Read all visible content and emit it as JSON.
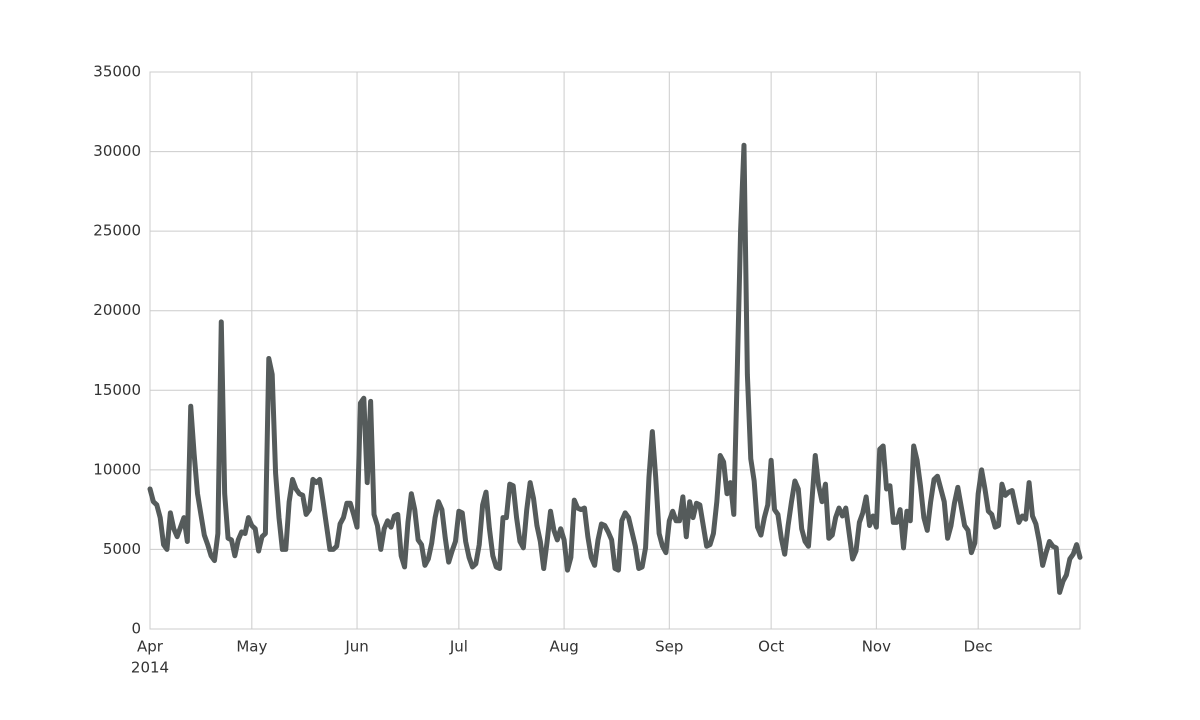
{
  "chart_data": {
    "type": "line",
    "xticks": [
      {
        "value": 0,
        "label": "Apr",
        "sublabel": "2014"
      },
      {
        "value": 30,
        "label": "May"
      },
      {
        "value": 61,
        "label": "Jun"
      },
      {
        "value": 91,
        "label": "Jul"
      },
      {
        "value": 122,
        "label": "Aug"
      },
      {
        "value": 153,
        "label": "Sep"
      },
      {
        "value": 183,
        "label": "Oct"
      },
      {
        "value": 214,
        "label": "Nov"
      },
      {
        "value": 244,
        "label": "Dec"
      }
    ],
    "xlim": [
      0,
      274
    ],
    "ylim": [
      0,
      35000
    ],
    "yticks": [
      0,
      5000,
      10000,
      15000,
      20000,
      25000,
      30000,
      35000
    ],
    "grid": true,
    "color": "#555b5b",
    "values": [
      8800,
      8000,
      7800,
      7000,
      5300,
      5000,
      7300,
      6300,
      5800,
      6400,
      7000,
      5500,
      14000,
      11000,
      8500,
      7200,
      5900,
      5300,
      4600,
      4300,
      6000,
      19300,
      8500,
      5700,
      5600,
      4600,
      5600,
      6100,
      6000,
      7000,
      6500,
      6300,
      4900,
      5800,
      6000,
      17000,
      16000,
      9800,
      7000,
      5000,
      5000,
      8000,
      9400,
      8800,
      8500,
      8400,
      7200,
      7500,
      9400,
      9200,
      9400,
      8000,
      6500,
      5000,
      5000,
      5200,
      6600,
      7000,
      7900,
      7900,
      7200,
      6400,
      14200,
      14500,
      9200,
      14300,
      7200,
      6500,
      5000,
      6300,
      6800,
      6400,
      7100,
      7200,
      4600,
      3900,
      6700,
      8500,
      7500,
      5600,
      5300,
      4000,
      4400,
      5400,
      7000,
      8000,
      7500,
      5700,
      4200,
      4900,
      5500,
      7400,
      7300,
      5500,
      4500,
      3900,
      4100,
      5300,
      7800,
      8600,
      6300,
      4600,
      3900,
      3800,
      7000,
      7000,
      9100,
      9000,
      7000,
      5500,
      5100,
      7500,
      9200,
      8200,
      6500,
      5500,
      3800,
      5500,
      7400,
      6200,
      5600,
      6300,
      5600,
      3700,
      4500,
      8100,
      7600,
      7500,
      7600,
      5800,
      4500,
      4000,
      5600,
      6600,
      6500,
      6100,
      5600,
      3800,
      3700,
      6800,
      7300,
      7000,
      6100,
      5200,
      3800,
      3900,
      5100,
      9500,
      12400,
      9500,
      6000,
      5200,
      4800,
      6800,
      7400,
      6800,
      6800,
      8300,
      5800,
      8000,
      7000,
      7900,
      7800,
      6500,
      5200,
      5300,
      6000,
      8000,
      10900,
      10500,
      8500,
      9200,
      7200,
      16000,
      25000,
      30400,
      16000,
      10700,
      9300,
      6400,
      5900,
      7000,
      7800,
      10600,
      7500,
      7200,
      5700,
      4700,
      6500,
      8000,
      9300,
      8800,
      6300,
      5500,
      5200,
      8000,
      10900,
      9000,
      8000,
      9100,
      5700,
      5900,
      7000,
      7600,
      7100,
      7600,
      6000,
      4400,
      4900,
      6700,
      7300,
      8300,
      6500,
      7100,
      6400,
      11300,
      11500,
      8800,
      9000,
      6700,
      6700,
      7500,
      5100,
      7400,
      6800,
      11500,
      10600,
      9000,
      7000,
      6200,
      8000,
      9400,
      9600,
      8800,
      8000,
      5700,
      6500,
      7900,
      8900,
      7700,
      6500,
      6200,
      4800,
      5400,
      8500,
      10000,
      8800,
      7400,
      7200,
      6400,
      6500,
      9100,
      8400,
      8600,
      8700,
      7700,
      6700,
      7100,
      6900,
      9200,
      7100,
      6600,
      5500,
      4000,
      4800,
      5500,
      5200,
      5100,
      2300,
      3000,
      3400,
      4400,
      4700,
      5300,
      4500
    ]
  }
}
